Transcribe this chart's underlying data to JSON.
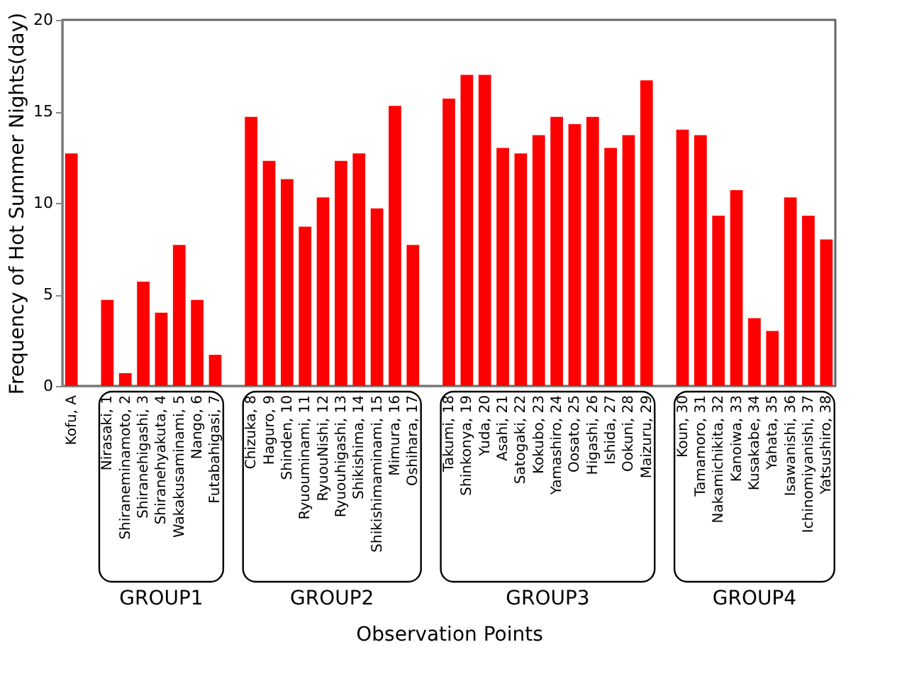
{
  "chart_data": {
    "type": "bar",
    "xlabel": "Observation Points",
    "ylabel": "Frequency of Hot Summer Nights(day)",
    "categories": [
      "Kofu,  A",
      null,
      "Nirasaki,  1",
      "Shiraneminamoto,  2",
      "Shiranehigashi,  3",
      "Shiranehyakuta,  4",
      "Wakakusaminami,  5",
      "Nango,  6",
      "Futabahigasi,  7",
      null,
      "Chizuka,  8",
      "Haguro,  9",
      "Shinden,  10",
      "Ryuouminami,  11",
      "RyuouNishi,  12",
      "Ryuouhigashi,  13",
      "Shikishima,  14",
      "Shikishimaminami,  15",
      "Mimura,  16",
      "Oshihara,  17",
      null,
      "Takumi,  18",
      "Shinkonya,  19",
      "Yuda,  20",
      "Asahi,  21",
      "Satogaki,  22",
      "Kokubo,  23",
      "Yamashiro,  24",
      "Oosato,  25",
      "Higashi,  26",
      "Ishida,  27",
      "Ookuni,  28",
      "Maizuru,  29",
      null,
      "Koun,  30",
      "Tamamoro,  31",
      "Nakamichikita,  32",
      "Kanoiwa,  33",
      "Kusakabe,  34",
      "Yahata,  35",
      "Isawanishi,  36",
      "Ichinomiyanishi,  37",
      "Yatsushiro,  38"
    ],
    "values": [
      12.7,
      null,
      4.7,
      0.7,
      5.7,
      4.0,
      7.7,
      4.7,
      1.7,
      null,
      14.7,
      12.3,
      11.3,
      8.7,
      10.3,
      12.3,
      12.7,
      9.7,
      15.3,
      7.7,
      null,
      15.7,
      17.0,
      17.0,
      13.0,
      12.7,
      13.7,
      14.7,
      14.3,
      14.7,
      13.0,
      13.7,
      16.7,
      null,
      14.0,
      13.7,
      9.3,
      10.7,
      3.7,
      3.0,
      10.3,
      9.3,
      8.0
    ],
    "color": "#ff0000",
    "ylim": [
      0,
      20
    ],
    "yticks": [
      0,
      5,
      10,
      15,
      20
    ],
    "grid": false,
    "annotations": [
      "GROUP1",
      "GROUP2",
      "GROUP3",
      "GROUP4"
    ]
  }
}
